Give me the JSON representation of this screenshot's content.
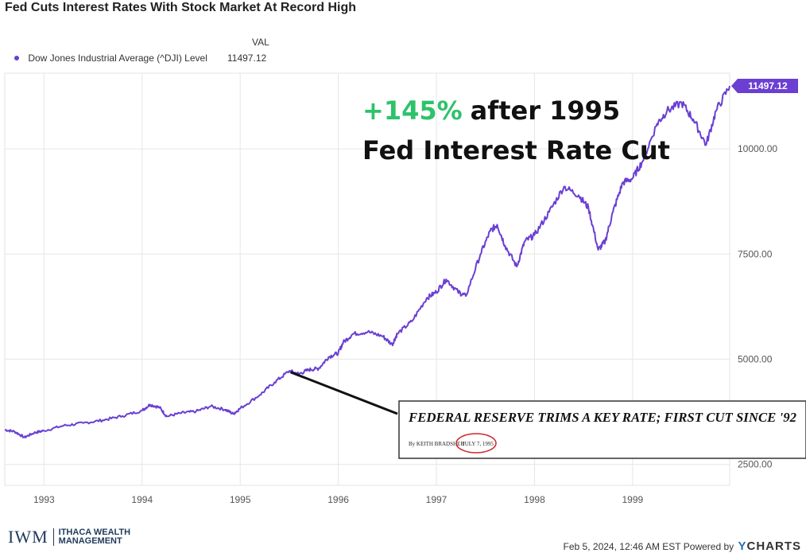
{
  "page": {
    "title": "Fed Cuts Interest Rates With Stock Market At Record High",
    "footer_date": "Feb 5, 2024, 12:46 AM EST",
    "footer_powered": "Powered by",
    "footer_brand": "CHARTS",
    "footer_brand_y": "Y",
    "logo_mark": "IWM",
    "logo_line1": "ITHACA WEALTH",
    "logo_line2": "MANAGEMENT"
  },
  "legend": {
    "header": "VAL",
    "series_label": "Dow Jones Industrial Average (^DJI) Level",
    "series_value": "11497.12"
  },
  "chart_data": {
    "type": "line",
    "title": "Fed Cuts Interest Rates With Stock Market At Record High",
    "xlabel": "",
    "ylabel": "",
    "xlim": [
      1992.6,
      1999.99
    ],
    "ylim": [
      2000,
      11800
    ],
    "grid": true,
    "legend_placement": "top-left",
    "x_ticks": [
      1993,
      1994,
      1995,
      1996,
      1997,
      1998,
      1999
    ],
    "x_tick_labels": [
      "1993",
      "1994",
      "1995",
      "1996",
      "1997",
      "1998",
      "1999"
    ],
    "y_ticks": [
      2500,
      5000,
      7500,
      10000
    ],
    "y_tick_labels": [
      "2500.00",
      "5000.00",
      "7500.00",
      "10000.00"
    ],
    "last_value_label": "11497.12",
    "color": "#6a3fd2",
    "series": [
      {
        "name": "Dow Jones Industrial Average (^DJI) Level",
        "points": [
          [
            1992.6,
            3320
          ],
          [
            1992.7,
            3280
          ],
          [
            1992.8,
            3140
          ],
          [
            1992.9,
            3250
          ],
          [
            1993.0,
            3300
          ],
          [
            1993.2,
            3420
          ],
          [
            1993.4,
            3480
          ],
          [
            1993.6,
            3550
          ],
          [
            1993.8,
            3650
          ],
          [
            1994.0,
            3780
          ],
          [
            1994.08,
            3920
          ],
          [
            1994.18,
            3850
          ],
          [
            1994.25,
            3640
          ],
          [
            1994.4,
            3720
          ],
          [
            1994.55,
            3760
          ],
          [
            1994.7,
            3880
          ],
          [
            1994.85,
            3800
          ],
          [
            1994.93,
            3700
          ],
          [
            1995.0,
            3830
          ],
          [
            1995.2,
            4150
          ],
          [
            1995.35,
            4450
          ],
          [
            1995.5,
            4720
          ],
          [
            1995.6,
            4650
          ],
          [
            1995.7,
            4750
          ],
          [
            1995.8,
            4780
          ],
          [
            1995.9,
            5050
          ],
          [
            1996.0,
            5150
          ],
          [
            1996.05,
            5400
          ],
          [
            1996.15,
            5600
          ],
          [
            1996.3,
            5650
          ],
          [
            1996.45,
            5550
          ],
          [
            1996.55,
            5350
          ],
          [
            1996.6,
            5600
          ],
          [
            1996.75,
            5900
          ],
          [
            1996.9,
            6450
          ],
          [
            1997.0,
            6600
          ],
          [
            1997.1,
            6900
          ],
          [
            1997.22,
            6600
          ],
          [
            1997.3,
            6500
          ],
          [
            1997.45,
            7500
          ],
          [
            1997.55,
            8050
          ],
          [
            1997.62,
            8200
          ],
          [
            1997.7,
            7700
          ],
          [
            1997.82,
            7200
          ],
          [
            1997.9,
            7800
          ],
          [
            1998.0,
            7950
          ],
          [
            1998.15,
            8500
          ],
          [
            1998.3,
            9100
          ],
          [
            1998.45,
            8900
          ],
          [
            1998.55,
            8600
          ],
          [
            1998.65,
            7600
          ],
          [
            1998.72,
            7800
          ],
          [
            1998.8,
            8500
          ],
          [
            1998.9,
            9200
          ],
          [
            1999.0,
            9300
          ],
          [
            1999.1,
            9700
          ],
          [
            1999.25,
            10600
          ],
          [
            1999.35,
            10900
          ],
          [
            1999.5,
            11100
          ],
          [
            1999.62,
            10700
          ],
          [
            1999.75,
            10100
          ],
          [
            1999.85,
            10900
          ],
          [
            1999.99,
            11497
          ]
        ]
      }
    ],
    "annotations": [
      {
        "type": "text",
        "text_green": "+145%",
        "text_black": "after 1995",
        "text_line2": "Fed Interest Rate Cut"
      },
      {
        "type": "callout",
        "headline": "FEDERAL RESERVE TRIMS A KEY RATE; FIRST CUT SINCE '92",
        "byline": "By KEITH BRADSHER",
        "dateline": "JULY 7, 1995",
        "points_to": [
          1995.5,
          4690
        ]
      }
    ]
  }
}
